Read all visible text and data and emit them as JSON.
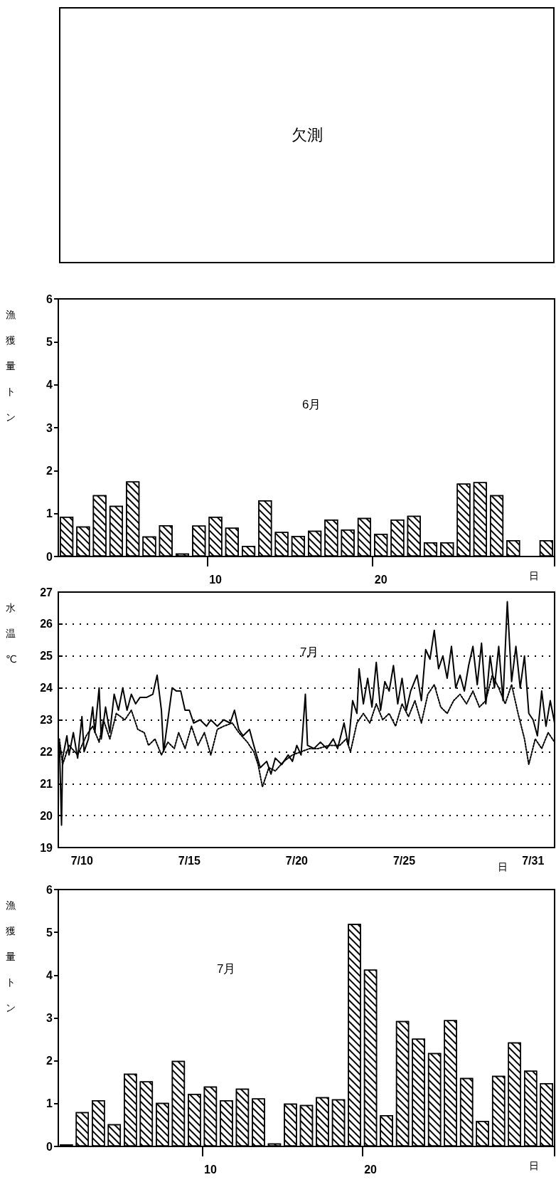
{
  "chart_data": [
    {
      "type": "other",
      "annotations": [
        "欠測"
      ]
    },
    {
      "type": "bar",
      "title": "6月",
      "ylabel": "漁獲量トン",
      "xlabel": "日",
      "categories": [
        null,
        null,
        null,
        null,
        null,
        null,
        null,
        null,
        null,
        "10",
        null,
        null,
        null,
        null,
        null,
        null,
        null,
        null,
        null,
        "20",
        null,
        null,
        null,
        null,
        null,
        null,
        null,
        null,
        null,
        null
      ],
      "series": [
        {
          "color": "#000000",
          "values": [
            0.93,
            0.7,
            1.43,
            1.18,
            1.75,
            0.47,
            0.73,
            0.07,
            0.72,
            0.93,
            0.67,
            0.25,
            1.31,
            0.57,
            0.48,
            0.6,
            0.86,
            0.63,
            0.9,
            0.53,
            0.86,
            0.95,
            0.33,
            0.33,
            1.7,
            1.73,
            1.43,
            0.38,
            null,
            0.38
          ]
        }
      ],
      "ylim": [
        0,
        6
      ],
      "yticks": [
        0,
        1,
        2,
        3,
        4,
        5,
        6
      ],
      "grid": false
    },
    {
      "type": "line",
      "title": "7月",
      "ylabel": "水温℃",
      "xlabel": "日",
      "marker": "none",
      "grid": "y",
      "xlim": [
        "--07-08T21:36",
        "--08-01T00:00"
      ],
      "xticks": [
        {
          "value": "--07-10T00:00",
          "label": "7/10"
        },
        {
          "value": "--07-15T00:00",
          "label": "7/15"
        },
        {
          "value": "--07-20T00:00",
          "label": "7/20"
        },
        {
          "value": "--07-25T00:00",
          "label": "7/25"
        },
        {
          "value": "--07-31T00:00",
          "label": "7/31"
        }
      ],
      "ylim": [
        19,
        27
      ],
      "yticks": [
        19,
        20,
        21,
        22,
        23,
        24,
        25,
        26,
        27
      ],
      "series": [
        {
          "color": "#000000",
          "line_style": "solid",
          "x": [
            "--07-08T22:48",
            "--07-09T01:12",
            "--07-09T02:24",
            "--07-09T07:12",
            "--07-09T09:36",
            "--07-09T14:24",
            "--07-09T19:12",
            "--07-10T00:00",
            "--07-10T02:24",
            "--07-10T07:12",
            "--07-10T12:00",
            "--07-10T14:24",
            "--07-10T19:12",
            "--07-10T21:36",
            "--07-11T02:24",
            "--07-11T07:12",
            "--07-11T12:00",
            "--07-11T16:48",
            "--07-11T21:36",
            "--07-12T02:24",
            "--07-12T07:12",
            "--07-12T12:00",
            "--07-12T16:48",
            "--07-13T00:00",
            "--07-13T07:12",
            "--07-13T12:00",
            "--07-13T16:48",
            "--07-13T19:12",
            "--07-14T00:00",
            "--07-14T04:48",
            "--07-14T09:36",
            "--07-14T14:24",
            "--07-14T19:12",
            "--07-15T00:00",
            "--07-15T04:48",
            "--07-15T12:00",
            "--07-15T19:12",
            "--07-16T00:00",
            "--07-16T07:12",
            "--07-16T14:24",
            "--07-16T21:36",
            "--07-17T02:24",
            "--07-17T07:12",
            "--07-17T12:00",
            "--07-17T19:12",
            "--07-18T00:00",
            "--07-18T07:12",
            "--07-18T14:24",
            "--07-18T19:12",
            "--07-19T00:00",
            "--07-19T07:12",
            "--07-19T14:24",
            "--07-19T19:12",
            "--07-20T00:00",
            "--07-20T04:48",
            "--07-20T09:36",
            "--07-20T12:00",
            "--07-20T19:12",
            "--07-21T02:24",
            "--07-21T09:36",
            "--07-21T16:48",
            "--07-21T21:36",
            "--07-22T04:48",
            "--07-22T09:36",
            "--07-22T14:24",
            "--07-22T19:12",
            "--07-22T21:36",
            "--07-23T02:24",
            "--07-23T07:12",
            "--07-23T12:00",
            "--07-23T16:48",
            "--07-23T21:36",
            "--07-24T02:24",
            "--07-24T07:12",
            "--07-24T12:00",
            "--07-24T16:48",
            "--07-24T21:36",
            "--07-25T02:24",
            "--07-25T07:12",
            "--07-25T14:24",
            "--07-25T19:12",
            "--07-26T00:00",
            "--07-26T04:48",
            "--07-26T09:36",
            "--07-26T14:24",
            "--07-26T19:12",
            "--07-27T00:00",
            "--07-27T04:48",
            "--07-27T09:36",
            "--07-27T14:24",
            "--07-27T19:12",
            "--07-28T00:00",
            "--07-28T04:48",
            "--07-28T09:36",
            "--07-28T14:24",
            "--07-28T19:12",
            "--07-29T00:00",
            "--07-29T04:48",
            "--07-29T09:36",
            "--07-29T14:24",
            "--07-29T19:12",
            "--07-30T00:00",
            "--07-30T04:48",
            "--07-30T09:36",
            "--07-30T14:24",
            "--07-30T19:12",
            "--07-31T00:00",
            "--07-31T04:48",
            "--07-31T09:36",
            "--07-31T14:24",
            "--07-31T19:12",
            "--08-01T00:00"
          ],
          "values": [
            22.3,
            19.7,
            21.8,
            22.5,
            21.9,
            22.6,
            21.8,
            23.1,
            22.0,
            22.4,
            23.4,
            22.6,
            24.0,
            22.4,
            23.4,
            22.6,
            23.8,
            23.3,
            24.0,
            23.3,
            23.8,
            23.5,
            23.7,
            23.7,
            23.8,
            24.4,
            23.3,
            22.0,
            23.0,
            24.0,
            23.9,
            23.9,
            23.3,
            23.3,
            22.9,
            23.0,
            22.8,
            23.0,
            22.8,
            23.0,
            22.9,
            23.3,
            22.7,
            22.5,
            22.7,
            22.2,
            21.5,
            21.7,
            21.3,
            21.8,
            21.6,
            21.9,
            21.7,
            22.2,
            21.9,
            23.8,
            22.2,
            22.1,
            22.3,
            22.1,
            22.4,
            22.1,
            22.9,
            22.2,
            23.6,
            23.2,
            24.6,
            23.5,
            24.3,
            23.4,
            24.8,
            23.3,
            24.2,
            23.9,
            24.7,
            23.5,
            24.3,
            23.3,
            23.9,
            24.4,
            23.6,
            25.2,
            24.9,
            25.8,
            24.6,
            25.0,
            24.3,
            25.3,
            24.0,
            24.4,
            23.9,
            24.7,
            25.3,
            24.1,
            25.4,
            23.5,
            25.0,
            24.0,
            25.3,
            23.6,
            26.7,
            24.2,
            25.3,
            24.0,
            25.0,
            23.2,
            23.0,
            22.5,
            23.9,
            22.8,
            23.6,
            22.9
          ]
        },
        {
          "color": "#000000",
          "line_style": "dotted",
          "x": [
            "--07-08T22:48",
            "--07-09T02:24",
            "--07-09T09:36",
            "--07-09T19:12",
            "--07-10T04:48",
            "--07-10T12:00",
            "--07-10T19:12",
            "--07-11T00:00",
            "--07-11T07:12",
            "--07-11T14:24",
            "--07-12T00:00",
            "--07-12T07:12",
            "--07-12T14:24",
            "--07-12T21:36",
            "--07-13T02:24",
            "--07-13T09:36",
            "--07-13T16:48",
            "--07-14T00:00",
            "--07-14T07:12",
            "--07-14T12:00",
            "--07-14T19:12",
            "--07-15T02:24",
            "--07-15T09:36",
            "--07-15T16:48",
            "--07-16T00:00",
            "--07-16T07:12",
            "--07-16T14:24",
            "--07-17T00:00",
            "--07-17T07:12",
            "--07-17T16:48",
            "--07-18T00:00",
            "--07-18T04:48",
            "--07-18T09:36",
            "--07-18T16:48",
            "--07-19T00:00",
            "--07-19T09:36",
            "--07-19T19:12",
            "--07-20T04:48",
            "--07-20T14:24",
            "--07-21T00:00",
            "--07-21T12:00",
            "--07-22T00:00",
            "--07-22T07:12",
            "--07-22T12:00",
            "--07-22T19:12",
            "--07-23T02:24",
            "--07-23T09:36",
            "--07-23T16:48",
            "--07-24T00:00",
            "--07-24T07:12",
            "--07-24T14:24",
            "--07-24T21:36",
            "--07-25T04:48",
            "--07-25T12:00",
            "--07-25T19:12",
            "--07-26T02:24",
            "--07-26T09:36",
            "--07-26T16:48",
            "--07-27T00:00",
            "--07-27T07:12",
            "--07-27T14:24",
            "--07-27T21:36",
            "--07-28T04:48",
            "--07-28T12:00",
            "--07-28T19:12",
            "--07-29T02:24",
            "--07-29T09:36",
            "--07-29T16:48",
            "--07-30T00:00",
            "--07-30T07:12",
            "--07-30T14:24",
            "--07-30T19:12",
            "--07-31T02:24",
            "--07-31T09:36",
            "--07-31T16:48",
            "--08-01T00:00"
          ],
          "values": [
            22.4,
            21.6,
            22.2,
            21.9,
            22.5,
            22.8,
            22.3,
            23.0,
            22.4,
            23.2,
            23.0,
            23.3,
            22.7,
            22.6,
            22.2,
            22.4,
            21.9,
            22.3,
            22.1,
            22.6,
            22.1,
            22.8,
            22.2,
            22.6,
            21.9,
            22.7,
            22.8,
            22.9,
            22.6,
            22.3,
            22.0,
            21.6,
            20.9,
            21.5,
            21.4,
            21.7,
            21.9,
            22.0,
            22.1,
            22.1,
            22.2,
            22.2,
            22.4,
            22.0,
            22.9,
            23.2,
            22.9,
            23.5,
            23.0,
            23.2,
            22.8,
            23.5,
            23.1,
            23.6,
            22.9,
            23.8,
            24.1,
            23.4,
            23.2,
            23.6,
            23.8,
            23.5,
            23.9,
            23.4,
            23.6,
            24.4,
            24.0,
            23.5,
            24.1,
            23.2,
            22.4,
            21.6,
            22.4,
            22.1,
            22.6,
            22.3
          ]
        }
      ]
    },
    {
      "type": "bar",
      "title": "7月",
      "ylabel": "漁獲量トン",
      "xlabel": "日",
      "categories": [
        null,
        null,
        null,
        null,
        null,
        null,
        null,
        null,
        null,
        "10",
        null,
        null,
        null,
        null,
        null,
        null,
        null,
        null,
        null,
        "20",
        null,
        null,
        null,
        null,
        null,
        null,
        null,
        null,
        null,
        null,
        null
      ],
      "series": [
        {
          "color": "#000000",
          "values": [
            0.05,
            0.8,
            1.08,
            0.52,
            1.7,
            1.52,
            1.02,
            2.0,
            1.23,
            1.4,
            1.08,
            1.35,
            1.12,
            0.07,
            1.0,
            0.97,
            1.15,
            1.1,
            5.2,
            4.13,
            0.73,
            2.93,
            2.52,
            2.18,
            2.95,
            1.6,
            0.6,
            1.65,
            2.43,
            1.77,
            1.48
          ]
        }
      ],
      "ylim": [
        0,
        6
      ],
      "yticks": [
        0,
        1,
        2,
        3,
        4,
        5,
        6
      ],
      "grid": false
    }
  ]
}
